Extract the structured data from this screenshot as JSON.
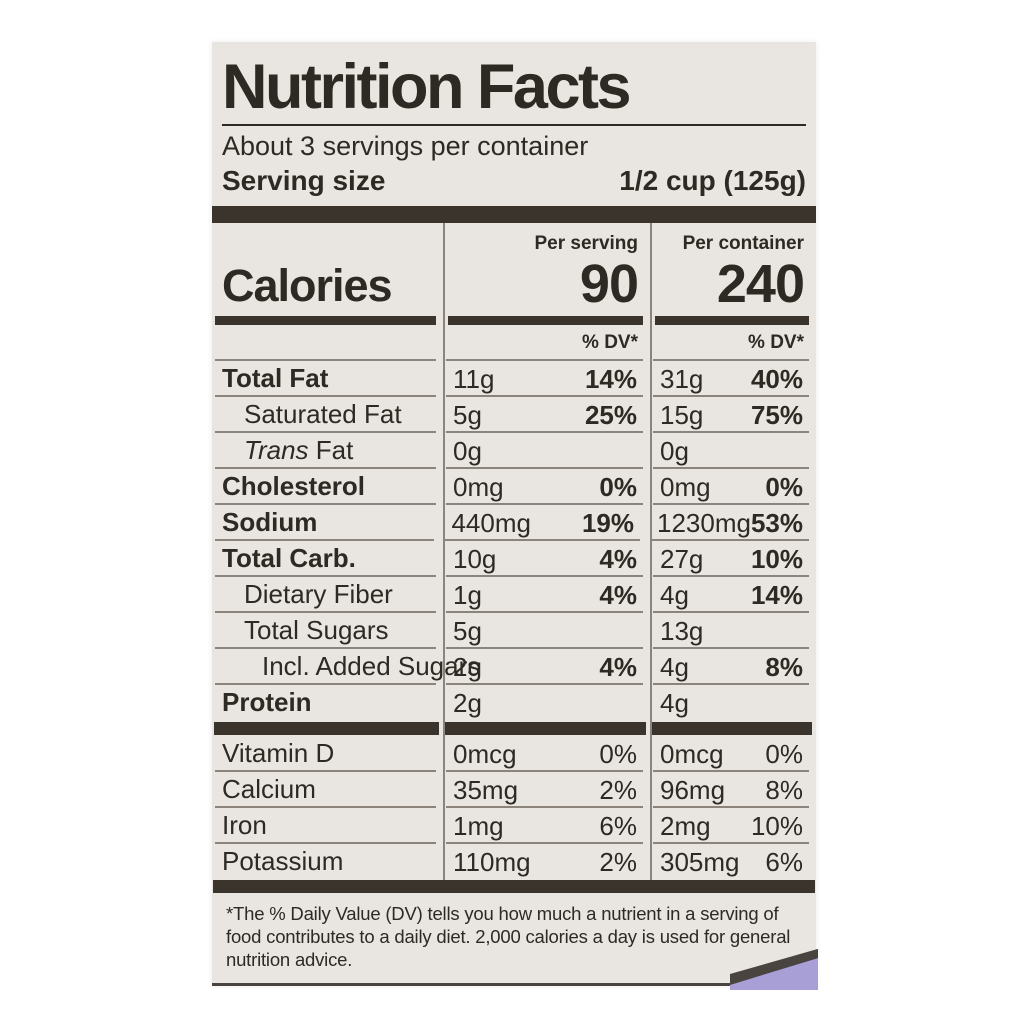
{
  "colors": {
    "label_bg": "#e9e6e1",
    "ink": "#2d2923",
    "bar": "#3a342d",
    "line": "#8a847c",
    "lavender": "#a89fd6"
  },
  "label": {
    "title": "Nutrition Facts",
    "servings_per_container": "About 3 servings per container",
    "serving_size_label": "Serving size",
    "serving_size_value": "1/2 cup (125g)",
    "calories": {
      "label": "Calories",
      "per_serving_header": "Per serving",
      "per_serving_value": "90",
      "per_container_header": "Per container",
      "per_container_value": "240"
    },
    "dv_header": "% DV*",
    "nutrients": [
      {
        "label": "Total Fat",
        "serving_amount": "11g",
        "serving_dv": "14%",
        "container_amount": "31g",
        "container_dv": "40%"
      },
      {
        "label": "Saturated Fat",
        "serving_amount": "5g",
        "serving_dv": "25%",
        "container_amount": "15g",
        "container_dv": "75%"
      },
      {
        "label_italic": "Trans",
        "label_rest": " Fat",
        "serving_amount": "0g",
        "serving_dv": "",
        "container_amount": "0g",
        "container_dv": ""
      },
      {
        "label": "Cholesterol",
        "serving_amount": "0mg",
        "serving_dv": "0%",
        "container_amount": "0mg",
        "container_dv": "0%"
      },
      {
        "label": "Sodium",
        "serving_amount": "440mg",
        "serving_dv": "19%",
        "container_amount": "1230mg",
        "container_dv": "53%"
      },
      {
        "label": "Total Carb.",
        "serving_amount": "10g",
        "serving_dv": "4%",
        "container_amount": "27g",
        "container_dv": "10%"
      },
      {
        "label": "Dietary Fiber",
        "serving_amount": "1g",
        "serving_dv": "4%",
        "container_amount": "4g",
        "container_dv": "14%"
      },
      {
        "label": "Total Sugars",
        "serving_amount": "5g",
        "serving_dv": "",
        "container_amount": "13g",
        "container_dv": ""
      },
      {
        "label": "Incl. Added Sugars",
        "serving_amount": "2g",
        "serving_dv": "4%",
        "container_amount": "4g",
        "container_dv": "8%"
      },
      {
        "label": "Protein",
        "serving_amount": "2g",
        "serving_dv": "",
        "container_amount": "4g",
        "container_dv": ""
      }
    ],
    "minerals": [
      {
        "label": "Vitamin D",
        "serving_amount": "0mcg",
        "serving_dv": "0%",
        "container_amount": "0mcg",
        "container_dv": "0%"
      },
      {
        "label": "Calcium",
        "serving_amount": "35mg",
        "serving_dv": "2%",
        "container_amount": "96mg",
        "container_dv": "8%"
      },
      {
        "label": "Iron",
        "serving_amount": "1mg",
        "serving_dv": "6%",
        "container_amount": "2mg",
        "container_dv": "10%"
      },
      {
        "label": "Potassium",
        "serving_amount": "110mg",
        "serving_dv": "2%",
        "container_amount": "305mg",
        "container_dv": "6%"
      }
    ],
    "footnote": "*The % Daily Value (DV) tells you how much a nutrient in a serving of food contributes to a daily diet. 2,000 calories a day is used for general nutrition advice."
  }
}
